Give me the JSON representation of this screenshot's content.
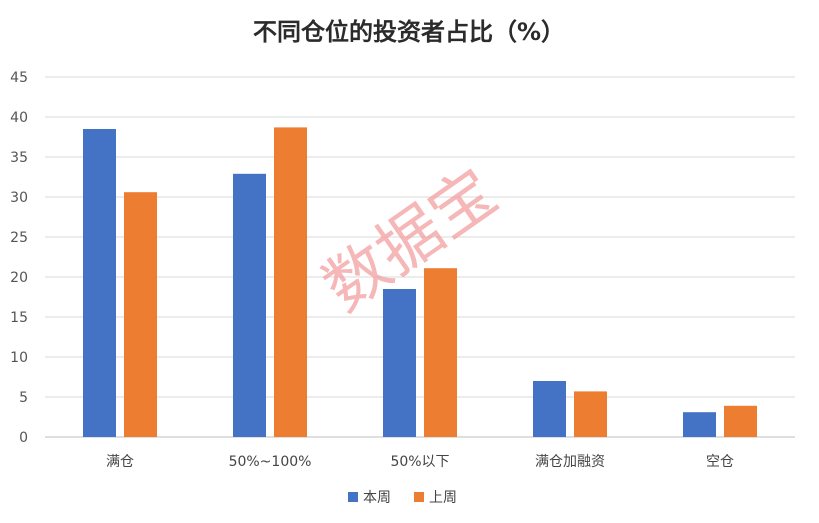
{
  "chart_data": {
    "type": "bar",
    "title": "不同仓位的投资者占比（%）",
    "categories": [
      "满仓",
      "50%~100%",
      "50%以下",
      "满仓加融资",
      "空仓"
    ],
    "series": [
      {
        "name": "本周",
        "color": "#4472C4",
        "values": [
          38.5,
          32.9,
          18.5,
          7.0,
          3.1
        ]
      },
      {
        "name": "上周",
        "color": "#ED7D31",
        "values": [
          30.6,
          38.7,
          21.1,
          5.7,
          3.9
        ]
      }
    ],
    "ylim": [
      0,
      45
    ],
    "yticks": [
      0,
      5,
      10,
      15,
      20,
      25,
      30,
      35,
      40,
      45
    ],
    "grid": true,
    "legend_position": "bottom"
  },
  "watermark": "数据宝"
}
